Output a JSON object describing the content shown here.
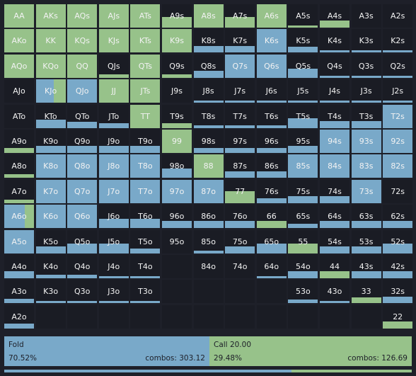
{
  "colors": {
    "fold": "#79a9c9",
    "call": "#97c28a",
    "empty": "#1a1c24"
  },
  "grid": [
    {
      "r": 0,
      "c": 0,
      "label": "AA",
      "fold": 0,
      "call": 100
    },
    {
      "r": 0,
      "c": 1,
      "label": "AKs",
      "fold": 0,
      "call": 100
    },
    {
      "r": 0,
      "c": 2,
      "label": "AQs",
      "fold": 0,
      "call": 100
    },
    {
      "r": 0,
      "c": 3,
      "label": "AJs",
      "fold": 0,
      "call": 100
    },
    {
      "r": 0,
      "c": 4,
      "label": "ATs",
      "fold": 0,
      "call": 100
    },
    {
      "r": 0,
      "c": 5,
      "label": "A9s",
      "fold": 0,
      "call": 45
    },
    {
      "r": 0,
      "c": 6,
      "label": "A8s",
      "fold": 0,
      "call": 100
    },
    {
      "r": 0,
      "c": 7,
      "label": "A7s",
      "fold": 0,
      "call": 45
    },
    {
      "r": 0,
      "c": 8,
      "label": "A6s",
      "fold": 0,
      "call": 100
    },
    {
      "r": 0,
      "c": 9,
      "label": "A5s",
      "fold": 0,
      "call": 10
    },
    {
      "r": 0,
      "c": 10,
      "label": "A4s",
      "fold": 0,
      "call": 30
    },
    {
      "r": 0,
      "c": 11,
      "label": "A3s",
      "fold": 0,
      "call": 0
    },
    {
      "r": 0,
      "c": 12,
      "label": "A2s",
      "fold": 0,
      "call": 0
    },
    {
      "r": 1,
      "c": 0,
      "label": "AKo",
      "fold": 0,
      "call": 100
    },
    {
      "r": 1,
      "c": 1,
      "label": "KK",
      "fold": 0,
      "call": 100
    },
    {
      "r": 1,
      "c": 2,
      "label": "KQs",
      "fold": 0,
      "call": 100
    },
    {
      "r": 1,
      "c": 3,
      "label": "KJs",
      "fold": 0,
      "call": 100
    },
    {
      "r": 1,
      "c": 4,
      "label": "KTs",
      "fold": 0,
      "call": 100
    },
    {
      "r": 1,
      "c": 5,
      "label": "K9s",
      "fold": 0,
      "call": 100
    },
    {
      "r": 1,
      "c": 6,
      "label": "K8s",
      "fold": 30,
      "call": 0
    },
    {
      "r": 1,
      "c": 7,
      "label": "K7s",
      "fold": 30,
      "call": 0
    },
    {
      "r": 1,
      "c": 8,
      "label": "K6s",
      "fold": 100,
      "call": 0
    },
    {
      "r": 1,
      "c": 9,
      "label": "K5s",
      "fold": 25,
      "call": 0
    },
    {
      "r": 1,
      "c": 10,
      "label": "K4s",
      "fold": 10,
      "call": 0
    },
    {
      "r": 1,
      "c": 11,
      "label": "K3s",
      "fold": 10,
      "call": 0
    },
    {
      "r": 1,
      "c": 12,
      "label": "K2s",
      "fold": 10,
      "call": 0
    },
    {
      "r": 2,
      "c": 0,
      "label": "AQo",
      "fold": 0,
      "call": 100
    },
    {
      "r": 2,
      "c": 1,
      "label": "KQo",
      "fold": 0,
      "call": 100
    },
    {
      "r": 2,
      "c": 2,
      "label": "QQ",
      "fold": 0,
      "call": 100
    },
    {
      "r": 2,
      "c": 3,
      "label": "QJs",
      "fold": 0,
      "call": 15
    },
    {
      "r": 2,
      "c": 4,
      "label": "QTs",
      "fold": 0,
      "call": 100
    },
    {
      "r": 2,
      "c": 5,
      "label": "Q9s",
      "fold": 0,
      "call": 15
    },
    {
      "r": 2,
      "c": 6,
      "label": "Q8s",
      "fold": 30,
      "call": 0
    },
    {
      "r": 2,
      "c": 7,
      "label": "Q7s",
      "fold": 100,
      "call": 0
    },
    {
      "r": 2,
      "c": 8,
      "label": "Q6s",
      "fold": 100,
      "call": 0
    },
    {
      "r": 2,
      "c": 9,
      "label": "Q5s",
      "fold": 40,
      "call": 0
    },
    {
      "r": 2,
      "c": 10,
      "label": "Q4s",
      "fold": 10,
      "call": 0
    },
    {
      "r": 2,
      "c": 11,
      "label": "Q3s",
      "fold": 10,
      "call": 0
    },
    {
      "r": 2,
      "c": 12,
      "label": "Q2s",
      "fold": 10,
      "call": 0
    },
    {
      "r": 3,
      "c": 0,
      "label": "AJo",
      "fold": 0,
      "call": 0
    },
    {
      "r": 3,
      "c": 1,
      "label": "KJo",
      "fold": 60,
      "call": 40
    },
    {
      "r": 3,
      "c": 2,
      "label": "QJo",
      "fold": 100,
      "call": 0
    },
    {
      "r": 3,
      "c": 3,
      "label": "JJ",
      "fold": 0,
      "call": 100
    },
    {
      "r": 3,
      "c": 4,
      "label": "JTs",
      "fold": 0,
      "call": 100
    },
    {
      "r": 3,
      "c": 5,
      "label": "J9s",
      "fold": 0,
      "call": 0
    },
    {
      "r": 3,
      "c": 6,
      "label": "J8s",
      "fold": 10,
      "call": 0
    },
    {
      "r": 3,
      "c": 7,
      "label": "J7s",
      "fold": 10,
      "call": 0
    },
    {
      "r": 3,
      "c": 8,
      "label": "J6s",
      "fold": 10,
      "call": 0
    },
    {
      "r": 3,
      "c": 9,
      "label": "J5s",
      "fold": 10,
      "call": 0
    },
    {
      "r": 3,
      "c": 10,
      "label": "J4s",
      "fold": 10,
      "call": 0
    },
    {
      "r": 3,
      "c": 11,
      "label": "J3s",
      "fold": 10,
      "call": 0
    },
    {
      "r": 3,
      "c": 12,
      "label": "J2s",
      "fold": 10,
      "call": 0
    },
    {
      "r": 4,
      "c": 0,
      "label": "ATo",
      "fold": 0,
      "call": 0
    },
    {
      "r": 4,
      "c": 1,
      "label": "KTo",
      "fold": 35,
      "call": 0
    },
    {
      "r": 4,
      "c": 2,
      "label": "QTo",
      "fold": 25,
      "call": 0
    },
    {
      "r": 4,
      "c": 3,
      "label": "JTo",
      "fold": 20,
      "call": 0
    },
    {
      "r": 4,
      "c": 4,
      "label": "TT",
      "fold": 0,
      "call": 100
    },
    {
      "r": 4,
      "c": 5,
      "label": "T9s",
      "fold": 0,
      "call": 20
    },
    {
      "r": 4,
      "c": 6,
      "label": "T8s",
      "fold": 10,
      "call": 0
    },
    {
      "r": 4,
      "c": 7,
      "label": "T7s",
      "fold": 10,
      "call": 0
    },
    {
      "r": 4,
      "c": 8,
      "label": "T6s",
      "fold": 10,
      "call": 0
    },
    {
      "r": 4,
      "c": 9,
      "label": "T5s",
      "fold": 40,
      "call": 0
    },
    {
      "r": 4,
      "c": 10,
      "label": "T4s",
      "fold": 30,
      "call": 0
    },
    {
      "r": 4,
      "c": 11,
      "label": "T3s",
      "fold": 30,
      "call": 0
    },
    {
      "r": 4,
      "c": 12,
      "label": "T2s",
      "fold": 100,
      "call": 0
    },
    {
      "r": 5,
      "c": 0,
      "label": "A9o",
      "fold": 0,
      "call": 20
    },
    {
      "r": 5,
      "c": 1,
      "label": "K9o",
      "fold": 30,
      "call": 0
    },
    {
      "r": 5,
      "c": 2,
      "label": "Q9o",
      "fold": 30,
      "call": 0
    },
    {
      "r": 5,
      "c": 3,
      "label": "J9o",
      "fold": 30,
      "call": 0
    },
    {
      "r": 5,
      "c": 4,
      "label": "T9o",
      "fold": 30,
      "call": 0
    },
    {
      "r": 5,
      "c": 5,
      "label": "99",
      "fold": 0,
      "call": 100
    },
    {
      "r": 5,
      "c": 6,
      "label": "98s",
      "fold": 20,
      "call": 0
    },
    {
      "r": 5,
      "c": 7,
      "label": "97s",
      "fold": 20,
      "call": 0
    },
    {
      "r": 5,
      "c": 8,
      "label": "96s",
      "fold": 20,
      "call": 0
    },
    {
      "r": 5,
      "c": 9,
      "label": "95s",
      "fold": 30,
      "call": 0
    },
    {
      "r": 5,
      "c": 10,
      "label": "94s",
      "fold": 100,
      "call": 0
    },
    {
      "r": 5,
      "c": 11,
      "label": "93s",
      "fold": 100,
      "call": 0
    },
    {
      "r": 5,
      "c": 12,
      "label": "92s",
      "fold": 100,
      "call": 0
    },
    {
      "r": 6,
      "c": 0,
      "label": "A8o",
      "fold": 0,
      "call": 15
    },
    {
      "r": 6,
      "c": 1,
      "label": "K8o",
      "fold": 100,
      "call": 0
    },
    {
      "r": 6,
      "c": 2,
      "label": "Q8o",
      "fold": 100,
      "call": 0
    },
    {
      "r": 6,
      "c": 3,
      "label": "J8o",
      "fold": 100,
      "call": 0
    },
    {
      "r": 6,
      "c": 4,
      "label": "T8o",
      "fold": 100,
      "call": 0
    },
    {
      "r": 6,
      "c": 5,
      "label": "98o",
      "fold": 40,
      "call": 0
    },
    {
      "r": 6,
      "c": 6,
      "label": "88",
      "fold": 0,
      "call": 100
    },
    {
      "r": 6,
      "c": 7,
      "label": "87s",
      "fold": 30,
      "call": 0
    },
    {
      "r": 6,
      "c": 8,
      "label": "86s",
      "fold": 30,
      "call": 0
    },
    {
      "r": 6,
      "c": 9,
      "label": "85s",
      "fold": 100,
      "call": 0
    },
    {
      "r": 6,
      "c": 10,
      "label": "84s",
      "fold": 100,
      "call": 0
    },
    {
      "r": 6,
      "c": 11,
      "label": "83s",
      "fold": 100,
      "call": 0
    },
    {
      "r": 6,
      "c": 12,
      "label": "82s",
      "fold": 100,
      "call": 0
    },
    {
      "r": 7,
      "c": 0,
      "label": "A7o",
      "fold": 0,
      "call": 15
    },
    {
      "r": 7,
      "c": 1,
      "label": "K7o",
      "fold": 100,
      "call": 0
    },
    {
      "r": 7,
      "c": 2,
      "label": "Q7o",
      "fold": 100,
      "call": 0
    },
    {
      "r": 7,
      "c": 3,
      "label": "J7o",
      "fold": 100,
      "call": 0
    },
    {
      "r": 7,
      "c": 4,
      "label": "T7o",
      "fold": 100,
      "call": 0
    },
    {
      "r": 7,
      "c": 5,
      "label": "97o",
      "fold": 100,
      "call": 0
    },
    {
      "r": 7,
      "c": 6,
      "label": "87o",
      "fold": 100,
      "call": 0
    },
    {
      "r": 7,
      "c": 7,
      "label": "77",
      "fold": 0,
      "call": 50
    },
    {
      "r": 7,
      "c": 8,
      "label": "76s",
      "fold": 20,
      "call": 0
    },
    {
      "r": 7,
      "c": 9,
      "label": "75s",
      "fold": 30,
      "call": 0
    },
    {
      "r": 7,
      "c": 10,
      "label": "74s",
      "fold": 30,
      "call": 0
    },
    {
      "r": 7,
      "c": 11,
      "label": "73s",
      "fold": 100,
      "call": 0
    },
    {
      "r": 7,
      "c": 12,
      "label": "72s",
      "fold": 0,
      "call": 0
    },
    {
      "r": 8,
      "c": 0,
      "label": "A6o",
      "fold": 70,
      "call": 30
    },
    {
      "r": 8,
      "c": 1,
      "label": "K6o",
      "fold": 100,
      "call": 0
    },
    {
      "r": 8,
      "c": 2,
      "label": "Q6o",
      "fold": 100,
      "call": 0
    },
    {
      "r": 8,
      "c": 3,
      "label": "J6o",
      "fold": 40,
      "call": 0
    },
    {
      "r": 8,
      "c": 4,
      "label": "T6o",
      "fold": 40,
      "call": 0
    },
    {
      "r": 8,
      "c": 5,
      "label": "96o",
      "fold": 30,
      "call": 0
    },
    {
      "r": 8,
      "c": 6,
      "label": "86o",
      "fold": 30,
      "call": 0
    },
    {
      "r": 8,
      "c": 7,
      "label": "76o",
      "fold": 30,
      "call": 0
    },
    {
      "r": 8,
      "c": 8,
      "label": "66",
      "fold": 0,
      "call": 30
    },
    {
      "r": 8,
      "c": 9,
      "label": "65s",
      "fold": 20,
      "call": 0
    },
    {
      "r": 8,
      "c": 10,
      "label": "64s",
      "fold": 30,
      "call": 0
    },
    {
      "r": 8,
      "c": 11,
      "label": "63s",
      "fold": 30,
      "call": 0
    },
    {
      "r": 8,
      "c": 12,
      "label": "62s",
      "fold": 30,
      "call": 0
    },
    {
      "r": 9,
      "c": 0,
      "label": "A5o",
      "fold": 100,
      "call": 0
    },
    {
      "r": 9,
      "c": 1,
      "label": "K5o",
      "fold": 30,
      "call": 0
    },
    {
      "r": 9,
      "c": 2,
      "label": "Q5o",
      "fold": 40,
      "call": 0
    },
    {
      "r": 9,
      "c": 3,
      "label": "J5o",
      "fold": 40,
      "call": 0
    },
    {
      "r": 9,
      "c": 4,
      "label": "T5o",
      "fold": 20,
      "call": 0
    },
    {
      "r": 9,
      "c": 5,
      "label": "95o",
      "fold": 0,
      "call": 0
    },
    {
      "r": 9,
      "c": 6,
      "label": "85o",
      "fold": 10,
      "call": 0
    },
    {
      "r": 9,
      "c": 7,
      "label": "75o",
      "fold": 30,
      "call": 0
    },
    {
      "r": 9,
      "c": 8,
      "label": "65o",
      "fold": 40,
      "call": 0
    },
    {
      "r": 9,
      "c": 9,
      "label": "55",
      "fold": 0,
      "call": 40
    },
    {
      "r": 9,
      "c": 10,
      "label": "54s",
      "fold": 30,
      "call": 0
    },
    {
      "r": 9,
      "c": 11,
      "label": "53s",
      "fold": 30,
      "call": 0
    },
    {
      "r": 9,
      "c": 12,
      "label": "52s",
      "fold": 40,
      "call": 0
    },
    {
      "r": 10,
      "c": 0,
      "label": "A4o",
      "fold": 30,
      "call": 0
    },
    {
      "r": 10,
      "c": 1,
      "label": "K4o",
      "fold": 15,
      "call": 0
    },
    {
      "r": 10,
      "c": 2,
      "label": "Q4o",
      "fold": 15,
      "call": 0
    },
    {
      "r": 10,
      "c": 3,
      "label": "J4o",
      "fold": 10,
      "call": 0
    },
    {
      "r": 10,
      "c": 4,
      "label": "T4o",
      "fold": 10,
      "call": 0
    },
    {
      "r": 10,
      "c": 5,
      "label": "",
      "fold": 0,
      "call": 0
    },
    {
      "r": 10,
      "c": 6,
      "label": "84o",
      "fold": 0,
      "call": 0
    },
    {
      "r": 10,
      "c": 7,
      "label": "74o",
      "fold": 0,
      "call": 0
    },
    {
      "r": 10,
      "c": 8,
      "label": "64o",
      "fold": 10,
      "call": 0
    },
    {
      "r": 10,
      "c": 9,
      "label": "54o",
      "fold": 30,
      "call": 0
    },
    {
      "r": 10,
      "c": 10,
      "label": "44",
      "fold": 0,
      "call": 30
    },
    {
      "r": 10,
      "c": 11,
      "label": "43s",
      "fold": 30,
      "call": 0
    },
    {
      "r": 10,
      "c": 12,
      "label": "42s",
      "fold": 30,
      "call": 0
    },
    {
      "r": 11,
      "c": 0,
      "label": "A3o",
      "fold": 20,
      "call": 0
    },
    {
      "r": 11,
      "c": 1,
      "label": "K3o",
      "fold": 10,
      "call": 0
    },
    {
      "r": 11,
      "c": 2,
      "label": "Q3o",
      "fold": 10,
      "call": 0
    },
    {
      "r": 11,
      "c": 3,
      "label": "J3o",
      "fold": 10,
      "call": 0
    },
    {
      "r": 11,
      "c": 4,
      "label": "T3o",
      "fold": 10,
      "call": 0
    },
    {
      "r": 11,
      "c": 5,
      "label": "",
      "fold": 0,
      "call": 0
    },
    {
      "r": 11,
      "c": 6,
      "label": "",
      "fold": 0,
      "call": 0
    },
    {
      "r": 11,
      "c": 7,
      "label": "",
      "fold": 0,
      "call": 0
    },
    {
      "r": 11,
      "c": 8,
      "label": "",
      "fold": 0,
      "call": 0
    },
    {
      "r": 11,
      "c": 9,
      "label": "53o",
      "fold": 15,
      "call": 0
    },
    {
      "r": 11,
      "c": 10,
      "label": "43o",
      "fold": 10,
      "call": 0
    },
    {
      "r": 11,
      "c": 11,
      "label": "33",
      "fold": 0,
      "call": 25
    },
    {
      "r": 11,
      "c": 12,
      "label": "32s",
      "fold": 30,
      "call": 0
    },
    {
      "r": 12,
      "c": 0,
      "label": "A2o",
      "fold": 20,
      "call": 0
    },
    {
      "r": 12,
      "c": 1,
      "label": "",
      "fold": 0,
      "call": 0
    },
    {
      "r": 12,
      "c": 2,
      "label": "",
      "fold": 0,
      "call": 0
    },
    {
      "r": 12,
      "c": 3,
      "label": "",
      "fold": 0,
      "call": 0
    },
    {
      "r": 12,
      "c": 4,
      "label": "",
      "fold": 0,
      "call": 0
    },
    {
      "r": 12,
      "c": 5,
      "label": "",
      "fold": 0,
      "call": 0
    },
    {
      "r": 12,
      "c": 6,
      "label": "",
      "fold": 0,
      "call": 0
    },
    {
      "r": 12,
      "c": 7,
      "label": "",
      "fold": 0,
      "call": 0
    },
    {
      "r": 12,
      "c": 8,
      "label": "",
      "fold": 0,
      "call": 0
    },
    {
      "r": 12,
      "c": 9,
      "label": "",
      "fold": 0,
      "call": 0
    },
    {
      "r": 12,
      "c": 10,
      "label": "",
      "fold": 0,
      "call": 0
    },
    {
      "r": 12,
      "c": 11,
      "label": "",
      "fold": 0,
      "call": 0
    },
    {
      "r": 12,
      "c": 12,
      "label": "22",
      "fold": 0,
      "call": 30
    }
  ],
  "actions": {
    "fold": {
      "name": "Fold",
      "pct": "70.52%",
      "combos": "combos: 303.12"
    },
    "call": {
      "name": "Call 20.00",
      "pct": "29.48%",
      "combos": "combos: 126.69"
    }
  },
  "frequency_bar": {
    "fold": 0.7052,
    "call": 0.2948
  }
}
